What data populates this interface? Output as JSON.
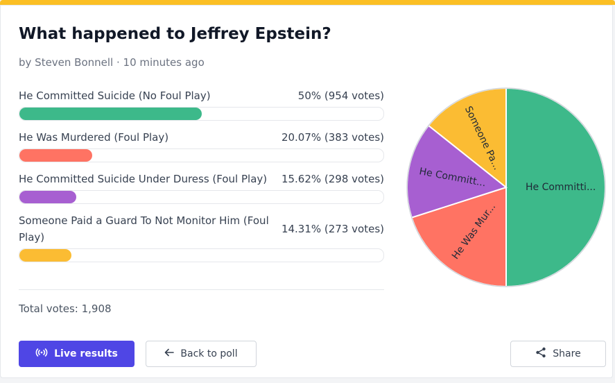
{
  "poll": {
    "title": "What happened to Jeffrey Epstein?",
    "meta": "by Steven Bonnell · 10 minutes ago",
    "options": [
      {
        "label": "He Committed Suicide (No Foul Play)",
        "stat": "50% (954 votes)",
        "percent": 50,
        "votes": 954,
        "color": "#3db98a",
        "pie_label": "He Committi..."
      },
      {
        "label": "He Was Murdered (Foul Play)",
        "stat": "20.07% (383 votes)",
        "percent": 20.07,
        "votes": 383,
        "color": "#ff7363",
        "pie_label": "He Was Mur..."
      },
      {
        "label": "He Committed Suicide Under Duress (Foul Play)",
        "stat": "15.62% (298 votes)",
        "percent": 15.62,
        "votes": 298,
        "color": "#a75fd1",
        "pie_label": "He Committ..."
      },
      {
        "label": "Someone Paid a Guard To Not Monitor Him (Foul Play)",
        "stat": "14.31% (273 votes)",
        "percent": 14.31,
        "votes": 273,
        "color": "#fbbc33",
        "pie_label": "Someone Pa..."
      }
    ],
    "total": "Total votes: 1,908"
  },
  "buttons": {
    "live": "Live results",
    "back": "Back to poll",
    "share": "Share"
  },
  "icons": {
    "live": "broadcast-icon",
    "back": "arrow-left-icon",
    "share": "share-icon"
  },
  "colors": {
    "accent": "#4f46e5",
    "top_bar": "#fbbf24"
  },
  "chart_data": {
    "type": "pie",
    "categories": [
      "He Committed Suicide (No Foul Play)",
      "He Was Murdered (Foul Play)",
      "He Committed Suicide Under Duress (Foul Play)",
      "Someone Paid a Guard To Not Monitor Him (Foul Play)"
    ],
    "values": [
      954,
      383,
      298,
      273
    ],
    "slice_labels": [
      "He Committi...",
      "He Was Mur...",
      "He Committ...",
      "Someone Pa..."
    ],
    "colors": [
      "#3db98a",
      "#ff7363",
      "#a75fd1",
      "#fbbc33"
    ]
  }
}
